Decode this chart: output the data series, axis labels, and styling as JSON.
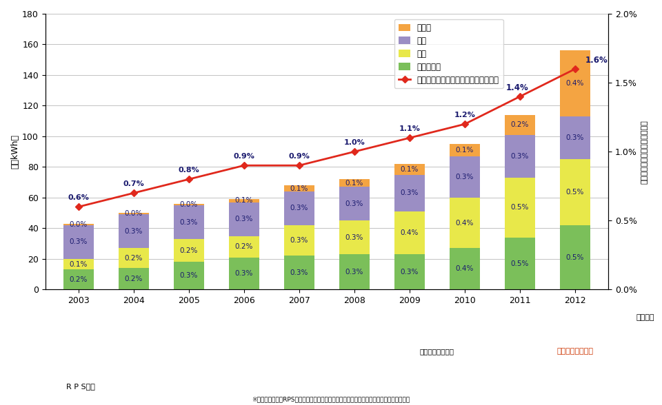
{
  "years": [
    2003,
    2004,
    2005,
    2006,
    2007,
    2008,
    2009,
    2010,
    2011,
    2012
  ],
  "biomass": [
    13,
    14,
    18,
    21,
    22,
    23,
    23,
    27,
    34,
    42
  ],
  "wind": [
    7,
    13,
    15,
    14,
    20,
    22,
    28,
    33,
    39,
    43
  ],
  "geothermal": [
    22,
    22,
    22,
    22,
    22,
    22,
    24,
    27,
    28,
    28
  ],
  "solar": [
    1,
    1,
    1,
    2,
    4,
    5,
    7,
    8,
    13,
    43
  ],
  "line_pct": [
    0.6,
    0.7,
    0.8,
    0.9,
    0.9,
    1.0,
    1.1,
    1.2,
    1.4,
    1.6
  ],
  "biomass_pct": [
    "0.2%",
    "0.2%",
    "0.3%",
    "0.3%",
    "0.3%",
    "0.3%",
    "0.3%",
    "0.4%",
    "0.5%",
    "0.5%"
  ],
  "wind_pct": [
    "0.1%",
    "0.2%",
    "0.2%",
    "0.2%",
    "0.3%",
    "0.3%",
    "0.4%",
    "0.4%",
    "0.5%",
    "0.5%"
  ],
  "geothermal_pct": [
    "0.3%",
    "0.3%",
    "0.3%",
    "0.3%",
    "0.3%",
    "0.3%",
    "0.3%",
    "0.3%",
    "0.3%",
    "0.3%"
  ],
  "solar_pct": [
    "0.0%",
    "0.0%",
    "0.0%",
    "0.1%",
    "0.1%",
    "0.1%",
    "0.1%",
    "0.1%",
    "0.2%",
    "0.4%"
  ],
  "line_pct_labels": [
    "0.6%",
    "0.7%",
    "0.8%",
    "0.9%",
    "0.9%",
    "1.0%",
    "1.1%",
    "1.2%",
    "1.4%",
    "1.6%"
  ],
  "color_solar": "#F4A442",
  "color_geothermal": "#9B8EC4",
  "color_wind": "#E8E84A",
  "color_biomass": "#7BBF5A",
  "color_line": "#E0281C",
  "ylim_left": [
    0,
    180
  ],
  "ylim_right": [
    0.0,
    2.0
  ],
  "yticks_left": [
    0,
    20,
    40,
    60,
    80,
    100,
    120,
    140,
    160,
    180
  ],
  "yticks_right": [
    0.0,
    0.5,
    1.0,
    1.5,
    2.0
  ],
  "ylabel_left": "（億kWh）",
  "ylabel_right": "（総発電電力量に占める割合）",
  "legend_solar": "太陽光",
  "legend_geothermal": "地熱",
  "legend_wind": "風力",
  "legend_biomass": "バイオマス",
  "legend_line": "再生可能エネルギー合計（水力除く）",
  "xlabel_year": "（年度）",
  "label_rps": "R P S制度",
  "label_yojyo": "余剰電力買取制度",
  "label_kotei": "固定価格買取制度",
  "footnote": "※電力調査統計、RPSデータ、固定価格買取制度の買取実總等より、資源エネルギー庁作成"
}
